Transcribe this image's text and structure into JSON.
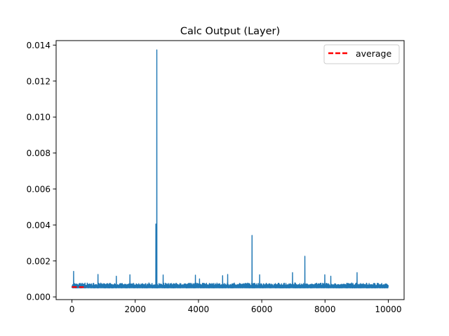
{
  "chart_data": {
    "type": "line",
    "title": "Calc Output (Layer)",
    "xlabel": "",
    "ylabel": "",
    "xlim": [
      -500,
      10500
    ],
    "ylim": [
      -0.00015,
      0.01425
    ],
    "x_ticks": [
      0,
      2000,
      4000,
      6000,
      8000,
      10000
    ],
    "x_tick_labels": [
      "0",
      "2000",
      "4000",
      "6000",
      "8000",
      "10000"
    ],
    "y_ticks": [
      0.0,
      0.002,
      0.004,
      0.006,
      0.008,
      0.01,
      0.012,
      0.014
    ],
    "y_tick_labels": [
      "0.000",
      "0.002",
      "0.004",
      "0.006",
      "0.008",
      "0.010",
      "0.012",
      "0.014"
    ],
    "grid": false,
    "legend_position": "upper right",
    "series": [
      {
        "kind": "line",
        "color": "#1f77b4",
        "n_points": 10000,
        "baseline_range": [
          0.0005,
          0.0008
        ],
        "spikes": [
          {
            "x": 50,
            "y": 0.00142
          },
          {
            "x": 820,
            "y": 0.00125
          },
          {
            "x": 1400,
            "y": 0.00115
          },
          {
            "x": 1830,
            "y": 0.00123
          },
          {
            "x": 2650,
            "y": 0.00405
          },
          {
            "x": 2680,
            "y": 0.01373
          },
          {
            "x": 2880,
            "y": 0.00122
          },
          {
            "x": 3900,
            "y": 0.00121
          },
          {
            "x": 4030,
            "y": 0.001
          },
          {
            "x": 4760,
            "y": 0.00118
          },
          {
            "x": 4920,
            "y": 0.00125
          },
          {
            "x": 5690,
            "y": 0.00342
          },
          {
            "x": 5930,
            "y": 0.00123
          },
          {
            "x": 6970,
            "y": 0.00135
          },
          {
            "x": 7360,
            "y": 0.00226
          },
          {
            "x": 7990,
            "y": 0.00123
          },
          {
            "x": 8180,
            "y": 0.00115
          },
          {
            "x": 9010,
            "y": 0.00135
          }
        ]
      },
      {
        "name": "average",
        "kind": "dashed",
        "color": "#ff0000",
        "x": [
          0,
          450
        ],
        "y": [
          0.00055,
          0.00054
        ]
      }
    ]
  }
}
